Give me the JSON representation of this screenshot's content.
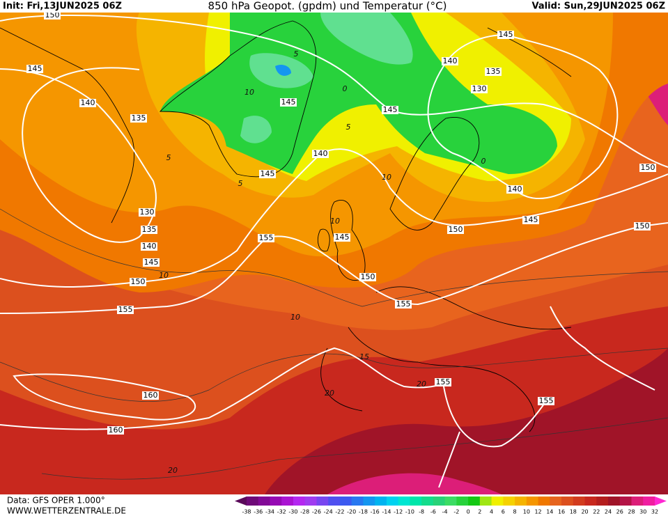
{
  "header": {
    "init": "Init: Fri,13JUN2025 06Z",
    "title": "850 hPa Geopot. (gpdm) und Temperatur (°C)",
    "valid": "Valid: Sun,29JUN2025 06Z"
  },
  "map": {
    "geopotential_labels": [
      150,
      145,
      140,
      135,
      130,
      135,
      140,
      145,
      150,
      155,
      160,
      160,
      145,
      140,
      145,
      155,
      145,
      150,
      155,
      155,
      155,
      145,
      145,
      140,
      135,
      130,
      150,
      140,
      145,
      150,
      150
    ],
    "temperature_labels": [
      5,
      10,
      0,
      5,
      5,
      5,
      10,
      10,
      0,
      10,
      10,
      15,
      20,
      20,
      20
    ]
  },
  "footer": {
    "data": "Data: GFS OPER 1.000°",
    "website": "WWW.WETTERZENTRALE.DE"
  },
  "colorbar": {
    "labels": [
      -38,
      -36,
      -34,
      -32,
      -30,
      -28,
      -26,
      -24,
      -22,
      -20,
      -18,
      -16,
      -14,
      -12,
      -10,
      -8,
      -6,
      -4,
      -2,
      0,
      2,
      4,
      6,
      8,
      10,
      12,
      14,
      16,
      18,
      20,
      22,
      24,
      26,
      28,
      30,
      32
    ]
  }
}
